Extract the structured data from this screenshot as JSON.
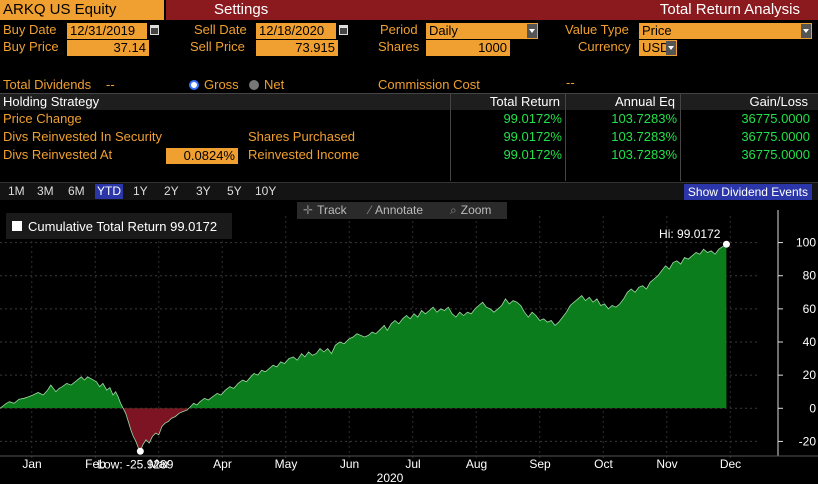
{
  "header": {
    "ticker": "ARKQ US Equity",
    "settings_label": "Settings",
    "app_title": "Total Return Analysis"
  },
  "params": {
    "buy_date_label": "Buy Date",
    "buy_date": "12/31/2019",
    "sell_date_label": "Sell Date",
    "sell_date": "12/18/2020",
    "period_label": "Period",
    "period": "Daily",
    "value_type_label": "Value Type",
    "value_type": "Price",
    "buy_price_label": "Buy Price",
    "buy_price": "37.14",
    "sell_price_label": "Sell Price",
    "sell_price": "73.915",
    "shares_label": "Shares",
    "shares": "1000",
    "currency_label": "Currency",
    "currency": "USD",
    "total_dividends_label": "Total Dividends",
    "total_dividends": "--",
    "gross_label": "Gross",
    "net_label": "Net",
    "commission_label": "Commission Cost",
    "commission": "--"
  },
  "table": {
    "headers": [
      "Holding Strategy",
      "Total Return",
      "Annual Eq",
      "Gain/Loss"
    ],
    "rows": [
      {
        "label": "Price Change",
        "total_return": "99.0172%",
        "annual_eq": "103.7283%",
        "gain_loss": "36775.0000"
      },
      {
        "label": "Divs Reinvested In Security",
        "extra_label": "Shares Purchased",
        "total_return": "99.0172%",
        "annual_eq": "103.7283%",
        "gain_loss": "36775.0000"
      },
      {
        "label": "Divs Reinvested At",
        "rate": "0.0824%",
        "extra_label": "Reinvested Income",
        "total_return": "99.0172%",
        "annual_eq": "103.7283%",
        "gain_loss": "36775.0000"
      }
    ]
  },
  "periods": [
    "1M",
    "3M",
    "6M",
    "YTD",
    "1Y",
    "2Y",
    "3Y",
    "5Y",
    "10Y"
  ],
  "active_period": "YTD",
  "show_dividend_events": "Show Dividend Events",
  "toolbar": {
    "track": "Track",
    "annotate": "Annotate",
    "zoom": "Zoom"
  },
  "colors": {
    "accent": "#f0a030",
    "header_bg": "#8b1a1f",
    "positive_fill": "#0b7d1c",
    "negative_fill": "#7c1423",
    "active_button": "#2b36a8"
  },
  "chart_data": {
    "type": "area",
    "title": "",
    "series": [
      {
        "name": "Cumulative Total Return",
        "last_value": "99.0172"
      }
    ],
    "legend_text": "Cumulative Total Return 99.0172",
    "hi_label": "Hi: 99.0172",
    "low_label": "Low: -25.9289",
    "hi": 99.0172,
    "low": -25.9289,
    "ylim": [
      -30,
      110
    ],
    "yticks": [
      100,
      80,
      60,
      40,
      20,
      0,
      -20
    ],
    "months": [
      "Jan",
      "Feb",
      "Mar",
      "Apr",
      "May",
      "Jun",
      "Jul",
      "Aug",
      "Sep",
      "Oct",
      "Nov",
      "Dec"
    ],
    "year_label": "2020",
    "points": [
      [
        0,
        0
      ],
      [
        0.05,
        1.5
      ],
      [
        0.1,
        3
      ],
      [
        0.15,
        4
      ],
      [
        0.22,
        3
      ],
      [
        0.3,
        5.5
      ],
      [
        0.38,
        6
      ],
      [
        0.45,
        7
      ],
      [
        0.52,
        8
      ],
      [
        0.6,
        9.5
      ],
      [
        0.68,
        8
      ],
      [
        0.75,
        11
      ],
      [
        0.8,
        14
      ],
      [
        0.88,
        10
      ],
      [
        0.93,
        12
      ],
      [
        0.98,
        13
      ],
      [
        1.05,
        15
      ],
      [
        1.12,
        14
      ],
      [
        1.2,
        16.5
      ],
      [
        1.28,
        19
      ],
      [
        1.33,
        17
      ],
      [
        1.38,
        19
      ],
      [
        1.45,
        17.5
      ],
      [
        1.52,
        16
      ],
      [
        1.57,
        13
      ],
      [
        1.62,
        15
      ],
      [
        1.68,
        11
      ],
      [
        1.73,
        12.5
      ],
      [
        1.78,
        8
      ],
      [
        1.82,
        10
      ],
      [
        1.86,
        7
      ],
      [
        1.9,
        3
      ],
      [
        1.94,
        0
      ],
      [
        1.98,
        -3
      ],
      [
        2.02,
        -8
      ],
      [
        2.06,
        -13
      ],
      [
        2.1,
        -17
      ],
      [
        2.14,
        -20
      ],
      [
        2.18,
        -24
      ],
      [
        2.21,
        -25.9289
      ],
      [
        2.25,
        -22
      ],
      [
        2.3,
        -19
      ],
      [
        2.35,
        -21
      ],
      [
        2.4,
        -17
      ],
      [
        2.45,
        -15
      ],
      [
        2.5,
        -16
      ],
      [
        2.55,
        -11
      ],
      [
        2.6,
        -9
      ],
      [
        2.65,
        -8
      ],
      [
        2.7,
        -6
      ],
      [
        2.76,
        -5
      ],
      [
        2.82,
        -3
      ],
      [
        2.88,
        -2
      ],
      [
        2.95,
        -1
      ],
      [
        3.0,
        1
      ],
      [
        3.05,
        3
      ],
      [
        3.1,
        2
      ],
      [
        3.15,
        4
      ],
      [
        3.22,
        6
      ],
      [
        3.28,
        5
      ],
      [
        3.35,
        7
      ],
      [
        3.42,
        9
      ],
      [
        3.48,
        8
      ],
      [
        3.55,
        11
      ],
      [
        3.62,
        13
      ],
      [
        3.68,
        12
      ],
      [
        3.75,
        15
      ],
      [
        3.82,
        17
      ],
      [
        3.88,
        16
      ],
      [
        3.95,
        19
      ],
      [
        4.0,
        21
      ],
      [
        4.06,
        20
      ],
      [
        4.12,
        23
      ],
      [
        4.18,
        22
      ],
      [
        4.24,
        24
      ],
      [
        4.3,
        26
      ],
      [
        4.36,
        25
      ],
      [
        4.42,
        28
      ],
      [
        4.48,
        27
      ],
      [
        4.55,
        30
      ],
      [
        4.62,
        31
      ],
      [
        4.68,
        29
      ],
      [
        4.75,
        33
      ],
      [
        4.8,
        31
      ],
      [
        4.86,
        34
      ],
      [
        4.92,
        32
      ],
      [
        4.98,
        33
      ],
      [
        5.04,
        36
      ],
      [
        5.1,
        34
      ],
      [
        5.16,
        36
      ],
      [
        5.22,
        33
      ],
      [
        5.28,
        38
      ],
      [
        5.35,
        40
      ],
      [
        5.42,
        39
      ],
      [
        5.5,
        42
      ],
      [
        5.56,
        43
      ],
      [
        5.62,
        45
      ],
      [
        5.68,
        44
      ],
      [
        5.74,
        43
      ],
      [
        5.8,
        44
      ],
      [
        5.86,
        46
      ],
      [
        5.92,
        45
      ],
      [
        6.0,
        48
      ],
      [
        6.05,
        50
      ],
      [
        6.1,
        47
      ],
      [
        6.16,
        51
      ],
      [
        6.22,
        53
      ],
      [
        6.28,
        51
      ],
      [
        6.34,
        54
      ],
      [
        6.4,
        56
      ],
      [
        6.46,
        54
      ],
      [
        6.52,
        57
      ],
      [
        6.58,
        55
      ],
      [
        6.64,
        59
      ],
      [
        6.7,
        57
      ],
      [
        6.76,
        59
      ],
      [
        6.82,
        61
      ],
      [
        6.88,
        58
      ],
      [
        6.94,
        60
      ],
      [
        7.0,
        59
      ],
      [
        7.06,
        61
      ],
      [
        7.12,
        57
      ],
      [
        7.18,
        55
      ],
      [
        7.24,
        58
      ],
      [
        7.3,
        56
      ],
      [
        7.36,
        58
      ],
      [
        7.42,
        57
      ],
      [
        7.48,
        60
      ],
      [
        7.54,
        62
      ],
      [
        7.6,
        64
      ],
      [
        7.66,
        61
      ],
      [
        7.72,
        60
      ],
      [
        7.78,
        58
      ],
      [
        7.84,
        60
      ],
      [
        7.9,
        62
      ],
      [
        7.96,
        66
      ],
      [
        8.02,
        63
      ],
      [
        8.08,
        65
      ],
      [
        8.14,
        64
      ],
      [
        8.2,
        62
      ],
      [
        8.26,
        58
      ],
      [
        8.32,
        55
      ],
      [
        8.38,
        58
      ],
      [
        8.44,
        56
      ],
      [
        8.5,
        53
      ],
      [
        8.56,
        54
      ],
      [
        8.62,
        52
      ],
      [
        8.68,
        53
      ],
      [
        8.74,
        50
      ],
      [
        8.8,
        52
      ],
      [
        8.86,
        55
      ],
      [
        8.92,
        58
      ],
      [
        8.98,
        62
      ],
      [
        9.04,
        64
      ],
      [
        9.1,
        66
      ],
      [
        9.16,
        68
      ],
      [
        9.22,
        65
      ],
      [
        9.28,
        67
      ],
      [
        9.34,
        64
      ],
      [
        9.4,
        66
      ],
      [
        9.46,
        62
      ],
      [
        9.52,
        63
      ],
      [
        9.58,
        60
      ],
      [
        9.64,
        62
      ],
      [
        9.7,
        61
      ],
      [
        9.76,
        63
      ],
      [
        9.82,
        66
      ],
      [
        9.88,
        70
      ],
      [
        9.94,
        72
      ],
      [
        10.0,
        70
      ],
      [
        10.06,
        73
      ],
      [
        10.12,
        74
      ],
      [
        10.18,
        72
      ],
      [
        10.24,
        76
      ],
      [
        10.3,
        78
      ],
      [
        10.36,
        80
      ],
      [
        10.42,
        83
      ],
      [
        10.48,
        86
      ],
      [
        10.54,
        84
      ],
      [
        10.6,
        88
      ],
      [
        10.66,
        89
      ],
      [
        10.72,
        87
      ],
      [
        10.78,
        91
      ],
      [
        10.84,
        90
      ],
      [
        10.9,
        92
      ],
      [
        10.96,
        94
      ],
      [
        11.02,
        93
      ],
      [
        11.08,
        96
      ],
      [
        11.14,
        94
      ],
      [
        11.2,
        95
      ],
      [
        11.26,
        93
      ],
      [
        11.32,
        96
      ],
      [
        11.38,
        97.5
      ],
      [
        11.44,
        99.0172
      ]
    ]
  }
}
